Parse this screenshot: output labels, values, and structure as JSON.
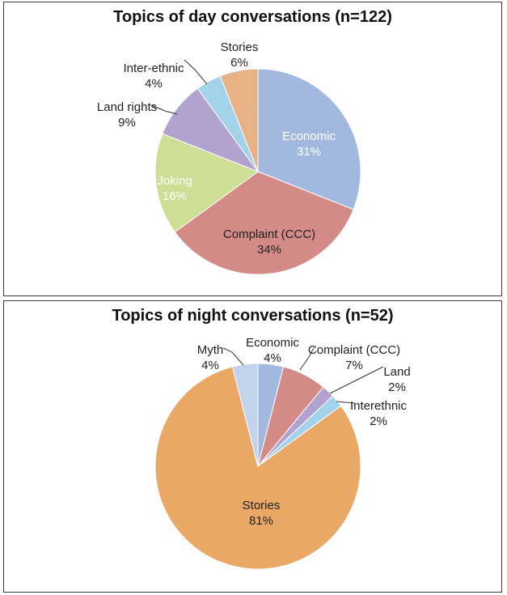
{
  "chart_data": [
    {
      "type": "pie",
      "title": "Topics of day conversations (n=122)",
      "slices": [
        {
          "label": "Economic",
          "value": 31,
          "display": "31%",
          "color": "#a3b8df"
        },
        {
          "label": "Complaint (CCC)",
          "value": 34,
          "display": "34%",
          "color": "#d48a87"
        },
        {
          "label": "Joking",
          "value": 16,
          "display": "16%",
          "color": "#cdde95"
        },
        {
          "label": "Land rights",
          "value": 9,
          "display": "9%",
          "color": "#b2a2cf"
        },
        {
          "label": "Inter-ethnic",
          "value": 4,
          "display": "4%",
          "color": "#a2d3ea"
        },
        {
          "label": "Stories",
          "value": 6,
          "display": "6%",
          "color": "#e9b186"
        }
      ]
    },
    {
      "type": "pie",
      "title": "Topics of night conversations (n=52)",
      "slices": [
        {
          "label": "Economic",
          "value": 4,
          "display": "4%",
          "color": "#a3b8df"
        },
        {
          "label": "Complaint (CCC)",
          "value": 7,
          "display": "7%",
          "color": "#d48a87"
        },
        {
          "label": "Land",
          "value": 2,
          "display": "2%",
          "color": "#b2a2cf"
        },
        {
          "label": "Interethnic",
          "value": 2,
          "display": "2%",
          "color": "#a2d3ea"
        },
        {
          "label": "Stories",
          "value": 81,
          "display": "81%",
          "color": "#e9a866"
        },
        {
          "label": "Myth",
          "value": 4,
          "display": "4%",
          "color": "#c2d3ec"
        }
      ]
    }
  ]
}
